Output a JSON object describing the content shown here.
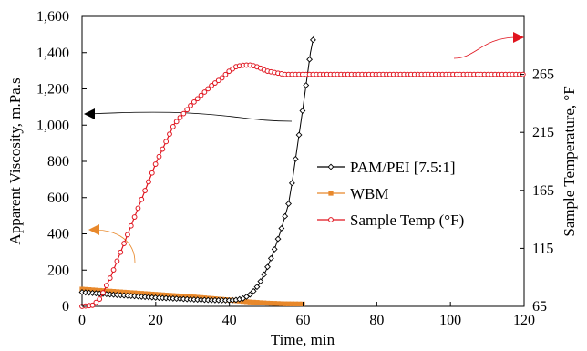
{
  "chart_data": {
    "type": "line",
    "title": "",
    "xlabel": "Time, min",
    "ylabel_left": "Apparent Viscosity, m.Pa.s",
    "ylabel_right": "Sample Temperature, °F",
    "xlim": [
      0,
      120
    ],
    "ylim_left": [
      0,
      1600
    ],
    "ylim_right": [
      65,
      315
    ],
    "x_ticks": [
      "0",
      "20",
      "40",
      "60",
      "80",
      "100",
      "120"
    ],
    "y_left_ticks": [
      "0",
      "200",
      "400",
      "600",
      "800",
      "1,000",
      "1,200",
      "1,400",
      "1,600"
    ],
    "y_right_ticks": [
      "65",
      "115",
      "165",
      "215",
      "265"
    ],
    "grid": false,
    "legend_position": "right",
    "series": [
      {
        "name": "PAM/PEI [7.5:1]",
        "axis": "left",
        "color": "#000000",
        "marker": "diamond",
        "points": [
          [
            0,
            78
          ],
          [
            5,
            70
          ],
          [
            10,
            62
          ],
          [
            15,
            55
          ],
          [
            20,
            48
          ],
          [
            25,
            43
          ],
          [
            30,
            38
          ],
          [
            35,
            34
          ],
          [
            40,
            33
          ],
          [
            42,
            36
          ],
          [
            44,
            45
          ],
          [
            46,
            70
          ],
          [
            48,
            120
          ],
          [
            50,
            200
          ],
          [
            52,
            300
          ],
          [
            54,
            420
          ],
          [
            56,
            560
          ],
          [
            57,
            680
          ],
          [
            58,
            820
          ],
          [
            59,
            960
          ],
          [
            60,
            1100
          ],
          [
            61,
            1250
          ],
          [
            62,
            1400
          ],
          [
            63,
            1500
          ]
        ]
      },
      {
        "name": "WBM",
        "axis": "left",
        "color": "#E8882B",
        "marker": "square",
        "points": [
          [
            0,
            95
          ],
          [
            10,
            80
          ],
          [
            20,
            66
          ],
          [
            30,
            52
          ],
          [
            40,
            35
          ],
          [
            45,
            25
          ],
          [
            50,
            18
          ],
          [
            55,
            14
          ],
          [
            60,
            13
          ]
        ]
      },
      {
        "name": "Sample Temp (°F)",
        "axis": "right",
        "color": "#E0141E",
        "marker": "circle",
        "points": [
          [
            0,
            65
          ],
          [
            3,
            66
          ],
          [
            5,
            72
          ],
          [
            8,
            92
          ],
          [
            10,
            108
          ],
          [
            15,
            148
          ],
          [
            20,
            188
          ],
          [
            25,
            222
          ],
          [
            30,
            240
          ],
          [
            35,
            255
          ],
          [
            38,
            262
          ],
          [
            40,
            268
          ],
          [
            42,
            272
          ],
          [
            44,
            273
          ],
          [
            46,
            273
          ],
          [
            48,
            271
          ],
          [
            50,
            268
          ],
          [
            55,
            265
          ],
          [
            60,
            265
          ],
          [
            70,
            265
          ],
          [
            80,
            265
          ],
          [
            90,
            265
          ],
          [
            100,
            265
          ],
          [
            110,
            265
          ],
          [
            120,
            265
          ]
        ]
      }
    ]
  }
}
